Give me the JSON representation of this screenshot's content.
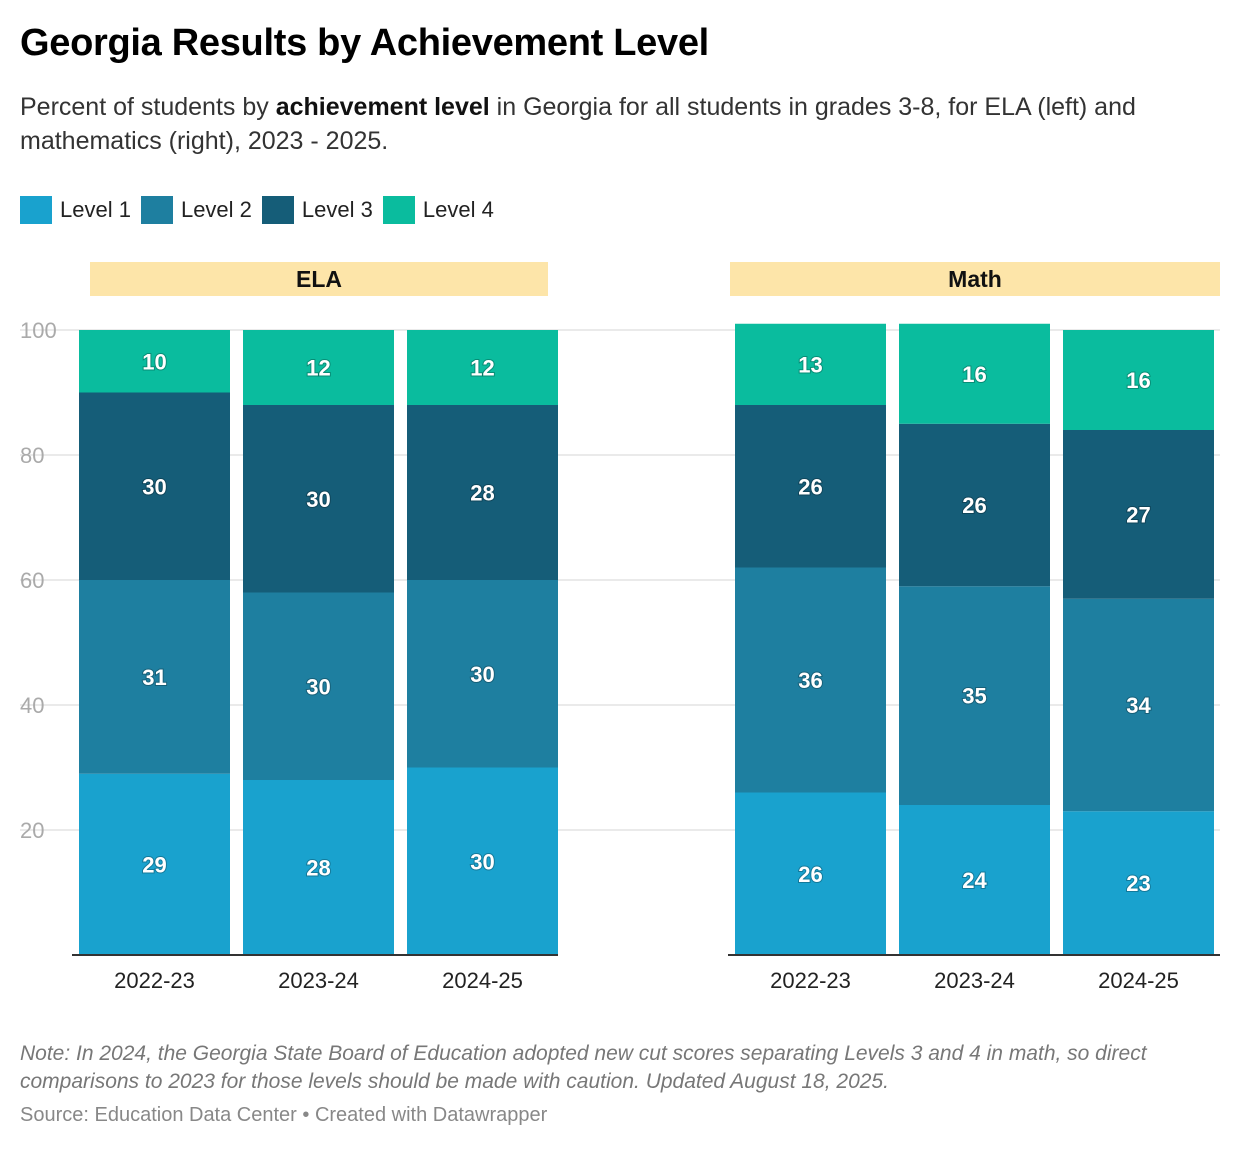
{
  "title": "Georgia Results by Achievement Level",
  "subtitle": {
    "before": "Percent of students by ",
    "bold": "achievement level",
    "after": " in Georgia for all students in grades 3-8, for ELA (left) and mathematics (right), 2023 - 2025."
  },
  "legend": [
    {
      "label": "Level 1",
      "color": "#19a2ce"
    },
    {
      "label": "Level 2",
      "color": "#1e7fa0"
    },
    {
      "label": "Level 3",
      "color": "#155d78"
    },
    {
      "label": "Level 4",
      "color": "#0abc9e"
    }
  ],
  "chart_data": [
    {
      "type": "bar",
      "stacked": true,
      "title": "ELA",
      "categories": [
        "2022-23",
        "2023-24",
        "2024-25"
      ],
      "series": [
        {
          "name": "Level 1",
          "values": [
            29,
            28,
            30
          ]
        },
        {
          "name": "Level 2",
          "values": [
            31,
            30,
            30
          ]
        },
        {
          "name": "Level 3",
          "values": [
            30,
            30,
            28
          ]
        },
        {
          "name": "Level 4",
          "values": [
            10,
            12,
            12
          ]
        }
      ],
      "ylim": [
        0,
        100
      ],
      "yticks": [
        20,
        40,
        60,
        80,
        100
      ],
      "grid": true
    },
    {
      "type": "bar",
      "stacked": true,
      "title": "Math",
      "categories": [
        "2022-23",
        "2023-24",
        "2024-25"
      ],
      "series": [
        {
          "name": "Level 1",
          "values": [
            26,
            24,
            23
          ]
        },
        {
          "name": "Level 2",
          "values": [
            36,
            35,
            34
          ]
        },
        {
          "name": "Level 3",
          "values": [
            26,
            26,
            27
          ]
        },
        {
          "name": "Level 4",
          "values": [
            13,
            16,
            16
          ]
        }
      ],
      "ylim": [
        0,
        100
      ],
      "yticks": [
        20,
        40,
        60,
        80,
        100
      ],
      "grid": true
    }
  ],
  "colors": {
    "panel_header_bg": "#fde5a9",
    "gridline": "#e3e3e3",
    "tick_label": "#aaaaaa",
    "axis_line": "#333333"
  },
  "note": "Note: In 2024, the Georgia State Board of Education adopted new cut scores separating Levels 3 and 4 in math, so direct comparisons to 2023 for those levels should be made with caution. Updated August 18, 2025.",
  "source": "Source: Education Data Center • Created with Datawrapper"
}
